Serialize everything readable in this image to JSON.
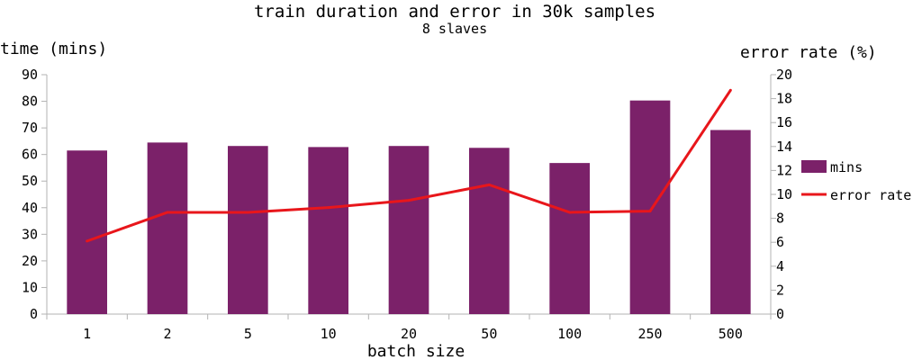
{
  "chart_data": {
    "type": "bar",
    "title": "train duration and error in 30k samples",
    "subtitle": "8 slaves",
    "xlabel": "batch size",
    "ylabel": "time (mins)",
    "y2label": "error rate (%)",
    "categories": [
      "1",
      "2",
      "5",
      "10",
      "20",
      "50",
      "100",
      "250",
      "500"
    ],
    "ylim": [
      0,
      90
    ],
    "yticks": [
      0,
      10,
      20,
      30,
      40,
      50,
      60,
      70,
      80,
      90
    ],
    "y2lim": [
      0,
      20
    ],
    "y2ticks": [
      0,
      2,
      4,
      6,
      8,
      10,
      12,
      14,
      16,
      18,
      20
    ],
    "grid": false,
    "legend_position": "right",
    "series": [
      {
        "name": "mins",
        "type": "bar",
        "axis": "left",
        "color": "#7b2169",
        "values": [
          61.5,
          64.5,
          63.2,
          62.8,
          63.2,
          62.5,
          56.8,
          80.3,
          69.2
        ]
      },
      {
        "name": "error rate",
        "type": "line",
        "axis": "right",
        "color": "#e8161b",
        "values": [
          6.1,
          8.5,
          8.5,
          8.9,
          9.5,
          10.8,
          8.5,
          8.6,
          18.7
        ]
      }
    ]
  }
}
